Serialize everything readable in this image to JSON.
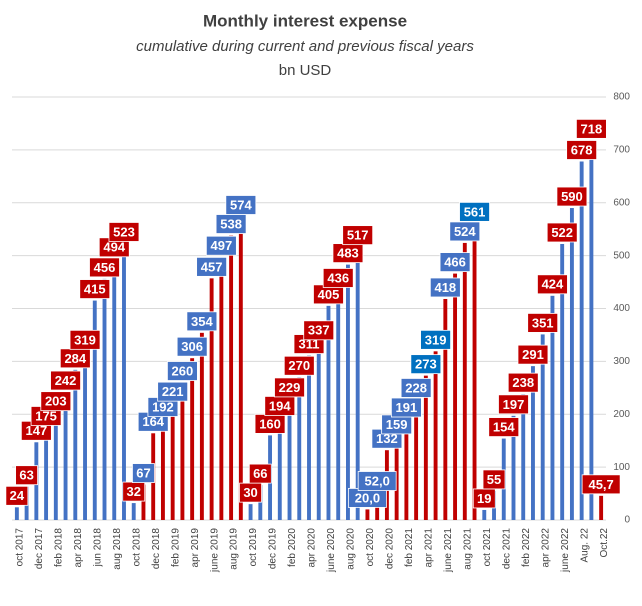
{
  "chart_data": {
    "type": "bar",
    "title": "Monthly interest expense",
    "subtitle": "cumulative during current and previous fiscal years",
    "unit_label": "bn USD",
    "categories": [
      "oct 2017",
      null,
      "dec 2017",
      null,
      "feb 2018",
      null,
      "apr 2018",
      null,
      "jun 2018",
      null,
      "aug 2018",
      null,
      "oct 2018",
      null,
      "dec 2018",
      null,
      "feb 2019",
      null,
      "apr 2019",
      null,
      "june 2019",
      null,
      "aug 2019",
      null,
      "oct 2019",
      null,
      "dec 2019",
      null,
      "feb 2020",
      null,
      "apr 2020",
      null,
      "june 2020",
      null,
      "aug 2020",
      null,
      "oct 2020",
      null,
      "dec 2020",
      null,
      "feb 2021",
      null,
      "apr 2021",
      null,
      "june 2021",
      null,
      "aug 2021",
      null,
      "oct 2021",
      null,
      "dec 2021",
      null,
      "feb 2022",
      null,
      "apr 2022",
      null,
      "june 2022",
      null,
      "Aug. 22",
      null,
      "Oct.22"
    ],
    "values": [
      24,
      63,
      147,
      175,
      203,
      242,
      284,
      319,
      415,
      456,
      494,
      523,
      32,
      67,
      164,
      192,
      221,
      260,
      306,
      354,
      457,
      497,
      538,
      574,
      30,
      66,
      160,
      194,
      229,
      270,
      311,
      337,
      405,
      436,
      483,
      517,
      20,
      52,
      132,
      159,
      191,
      228,
      273,
      319,
      418,
      466,
      524,
      561,
      19,
      55,
      154,
      197,
      238,
      291,
      351,
      424,
      522,
      590,
      678,
      718,
      45.7
    ],
    "value_labels": [
      "24",
      "63",
      "147",
      "175",
      "203",
      "242",
      "284",
      "319",
      "415",
      "456",
      "494",
      "523",
      "32",
      "67",
      "164",
      "192",
      "221",
      "260",
      "306",
      "354",
      "457",
      "497",
      "538",
      "574",
      "30",
      "66",
      "160",
      "194",
      "229",
      "270",
      "311",
      "337",
      "405",
      "436",
      "483",
      "517",
      "20,0",
      "52,0",
      "132",
      "159",
      "191",
      "228",
      "273",
      "319",
      "418",
      "466",
      "524",
      "561",
      "19",
      "55",
      "154",
      "197",
      "238",
      "291",
      "351",
      "424",
      "522",
      "590",
      "678",
      "718",
      "45,7"
    ],
    "label_colors": [
      "#c00000",
      "#c00000",
      "#c00000",
      "#c00000",
      "#c00000",
      "#c00000",
      "#c00000",
      "#c00000",
      "#c00000",
      "#c00000",
      "#c00000",
      "#c00000",
      "#c00000",
      "#4472c4",
      "#4472c4",
      "#4472c4",
      "#4472c4",
      "#4472c4",
      "#4472c4",
      "#4472c4",
      "#4472c4",
      "#4472c4",
      "#4472c4",
      "#4472c4",
      "#c00000",
      "#c00000",
      "#c00000",
      "#c00000",
      "#c00000",
      "#c00000",
      "#c00000",
      "#c00000",
      "#c00000",
      "#c00000",
      "#c00000",
      "#c00000",
      "#4472c4",
      "#4472c4",
      "#4472c4",
      "#4472c4",
      "#4472c4",
      "#4472c4",
      "#0070c0",
      "#0070c0",
      "#4472c4",
      "#4472c4",
      "#4472c4",
      "#0070c0",
      "#c00000",
      "#c00000",
      "#c00000",
      "#c00000",
      "#c00000",
      "#c00000",
      "#c00000",
      "#c00000",
      "#c00000",
      "#c00000",
      "#c00000",
      "#c00000",
      "#c00000"
    ],
    "bar_colors": [
      "#4472c4",
      "#4472c4",
      "#4472c4",
      "#4472c4",
      "#4472c4",
      "#4472c4",
      "#4472c4",
      "#4472c4",
      "#4472c4",
      "#4472c4",
      "#4472c4",
      "#4472c4",
      "#4472c4",
      "#c00000",
      "#c00000",
      "#c00000",
      "#c00000",
      "#c00000",
      "#c00000",
      "#c00000",
      "#c00000",
      "#c00000",
      "#c00000",
      "#c00000",
      "#4472c4",
      "#4472c4",
      "#4472c4",
      "#4472c4",
      "#4472c4",
      "#4472c4",
      "#4472c4",
      "#4472c4",
      "#4472c4",
      "#4472c4",
      "#4472c4",
      "#4472c4",
      "#c00000",
      "#c00000",
      "#c00000",
      "#c00000",
      "#c00000",
      "#c00000",
      "#c00000",
      "#c00000",
      "#c00000",
      "#c00000",
      "#c00000",
      "#c00000",
      "#4472c4",
      "#4472c4",
      "#4472c4",
      "#4472c4",
      "#4472c4",
      "#4472c4",
      "#4472c4",
      "#4472c4",
      "#4472c4",
      "#4472c4",
      "#4472c4",
      "#4472c4",
      "#c00000"
    ],
    "ylim": [
      0,
      800
    ],
    "yticks": [
      0,
      100,
      200,
      300,
      400,
      500,
      600,
      700,
      800
    ],
    "grid": true,
    "y_axis_side": "right"
  }
}
